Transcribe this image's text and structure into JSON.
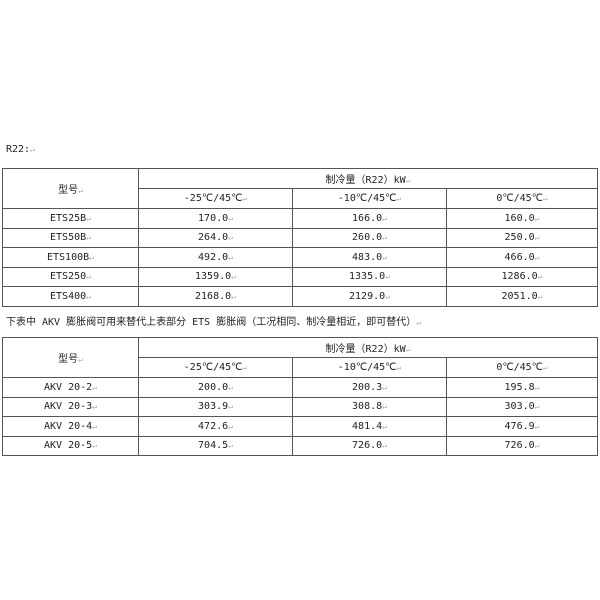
{
  "caption1": "R22:",
  "caption2": "下表中 AKV 膨胀阀可用来替代上表部分 ETS 膨胀阀（工况相同、制冷量相近，即可替代）",
  "header": {
    "model": "型号",
    "capacity": "制冷量（R22）kW",
    "conditions": [
      "-25℃/45℃",
      "-10℃/45℃",
      "0℃/45℃"
    ]
  },
  "table1": [
    [
      "ETS25B",
      "170.0",
      "166.0",
      "160.0"
    ],
    [
      "ETS50B",
      "264.0",
      "260.0",
      "250.0"
    ],
    [
      "ETS100B",
      "492.0",
      "483.0",
      "466.0"
    ],
    [
      "ETS250",
      "1359.0",
      "1335.0",
      "1286.0"
    ],
    [
      "ETS400",
      "2168.0",
      "2129.0",
      "2051.0"
    ]
  ],
  "table2": [
    [
      "AKV 20-2",
      "200.0",
      "200.3",
      "195.8"
    ],
    [
      "AKV 20-3",
      "303.9",
      "308.8",
      "303.0"
    ],
    [
      "AKV 20-4",
      "472.6",
      "481.4",
      "476.9"
    ],
    [
      "AKV 20-5",
      "704.5",
      "726.0",
      "726.0"
    ]
  ]
}
